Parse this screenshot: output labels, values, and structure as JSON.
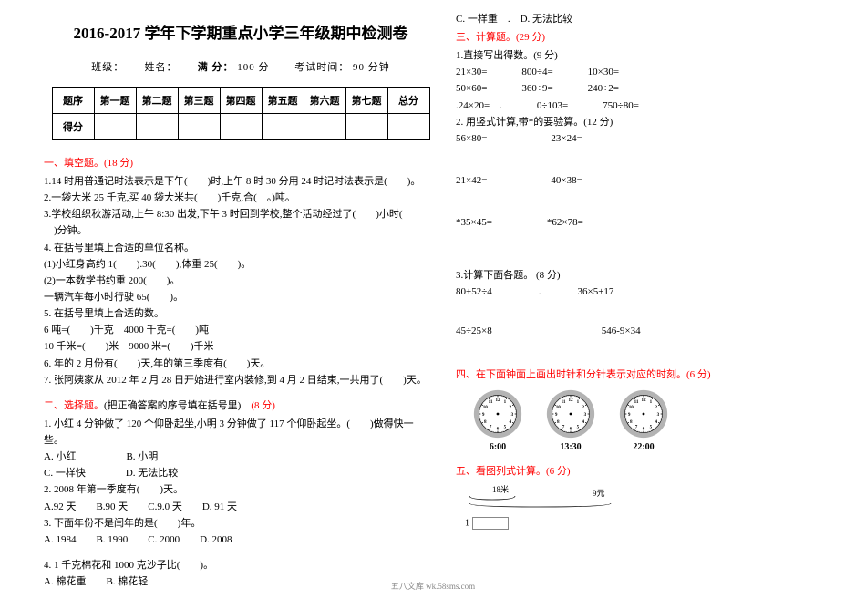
{
  "title": "2016-2017 学年下学期重点小学三年级期中检测卷",
  "meta": {
    "class": "班级：",
    "name": "姓名：",
    "full": "满 分：",
    "full_val": "100 分",
    "time_lbl": "考试时间：",
    "time_val": "90 分钟"
  },
  "score_table": {
    "row1": [
      "题序",
      "第一题",
      "第二题",
      "第三题",
      "第四题",
      "第五题",
      "第六题",
      "第七题",
      "总分"
    ],
    "row2_lbl": "得分"
  },
  "s1": {
    "hdr": "一、填空题。",
    "pts": "(18 分)",
    "l1": "1.14 时用普通记时法表示是下午(　　)时,上午 8 时 30 分用 24 时记时法表示是(　　)。",
    "l2": "2.一袋大米 25 千克,买 40 袋大米共(　　)千克,合(　。)吨。",
    "l3a": "3.学校组织秋游活动,上午 8:30 出发,下午 3 时回到学校,整个活动经过了(　　)小时(",
    "l3b": "　)分钟。",
    "l4": "4. 在括号里填上合适的单位名称。",
    "l5": "(1)小红身高约 1(　　).30(　　),体重 25(　　)。",
    "l6": "(2)一本数学书约重 200(　　)。",
    "l7": "一辆汽车每小时行驶 65(　　)。",
    "l8": "5. 在括号里填上合适的数。",
    "l9": "6 吨=(　　)千克　4000 千克=(　　)吨",
    "l10": "10 千米=(　　)米　9000 米=(　　)千米",
    "l11": "6. 年的 2 月份有(　　)天,年的第三季度有(　　)天。",
    "l12": "7. 张阿姨家从 2012 年 2 月 28 日开始进行室内装修,到 4 月 2 日结束,一共用了(　　)天。"
  },
  "s2": {
    "hdr": "二、选择题。",
    "sub": "(把正确答案的序号填在括号里)　",
    "pts": "(8 分)",
    "q1a": "1. 小红 4 分钟做了 120 个仰卧起坐,小明 3 分钟做了 117 个仰卧起坐。(　　)做得快一",
    "q1b": "些。",
    "q1o1": "A. 小红　　　　　B. 小明",
    "q1o2": "C. 一样快　　　　D. 无法比较",
    "q2": "2. 2008 年第一季度有(　　)天。",
    "q2o": "A.92 天　　B.90 天　　C.9.0 天　　D. 91 天",
    "q3": "3. 下面年份不是闰年的是(　　)年。",
    "q3o": "A. 1984　　B. 1990　　C. 2000　　D. 2008",
    "q4": "4. 1 千克棉花和 1000 克沙子比(　　)。",
    "q4o": "A. 棉花重　　B. 棉花轻"
  },
  "s2r": {
    "line": "C. 一样重　.　D. 无法比较"
  },
  "s3": {
    "hdr": "三、计算题。",
    "pts": "(29 分)",
    "p1": "1.直接写出得数。(9 分)",
    "r1": [
      "21×30=",
      "800÷4=",
      "10×30="
    ],
    "r2": [
      "50×60=",
      "360÷9=",
      "240÷2="
    ],
    "r3": [
      ".24×20=　.",
      "0÷103=",
      "750÷80="
    ],
    "p2": "2. 用竖式计算,带*的要验算。(12 分)",
    "r4": [
      "56×80=",
      "23×24="
    ],
    "r5": [
      "21×42=",
      "40×38="
    ],
    "r6": [
      "*35×45=",
      "*62×78="
    ],
    "p3": "3.计算下面各题。 (8 分)",
    "r7": [
      "80+52÷4",
      "　.",
      "36×5+17"
    ],
    "r8": [
      "45÷25×8",
      "",
      "546-9×34"
    ]
  },
  "s4": {
    "hdr": "四、在下面钟面上画出时针和分针表示对应的时刻。",
    "pts": "(6 分)",
    "times": [
      "6:00",
      "13:30",
      "22:00"
    ]
  },
  "s5": {
    "hdr": "五、看图列式计算。",
    "pts": "(6 分)",
    "len": "18米",
    "unit": "9元",
    "one": "1"
  },
  "footer": "五八文库 wk.58sms.com",
  "clock_style": {
    "outer_fill": "#b3b3b3",
    "face_fill": "#ffffff",
    "tick_color": "#000000",
    "num_color": "#000000"
  }
}
